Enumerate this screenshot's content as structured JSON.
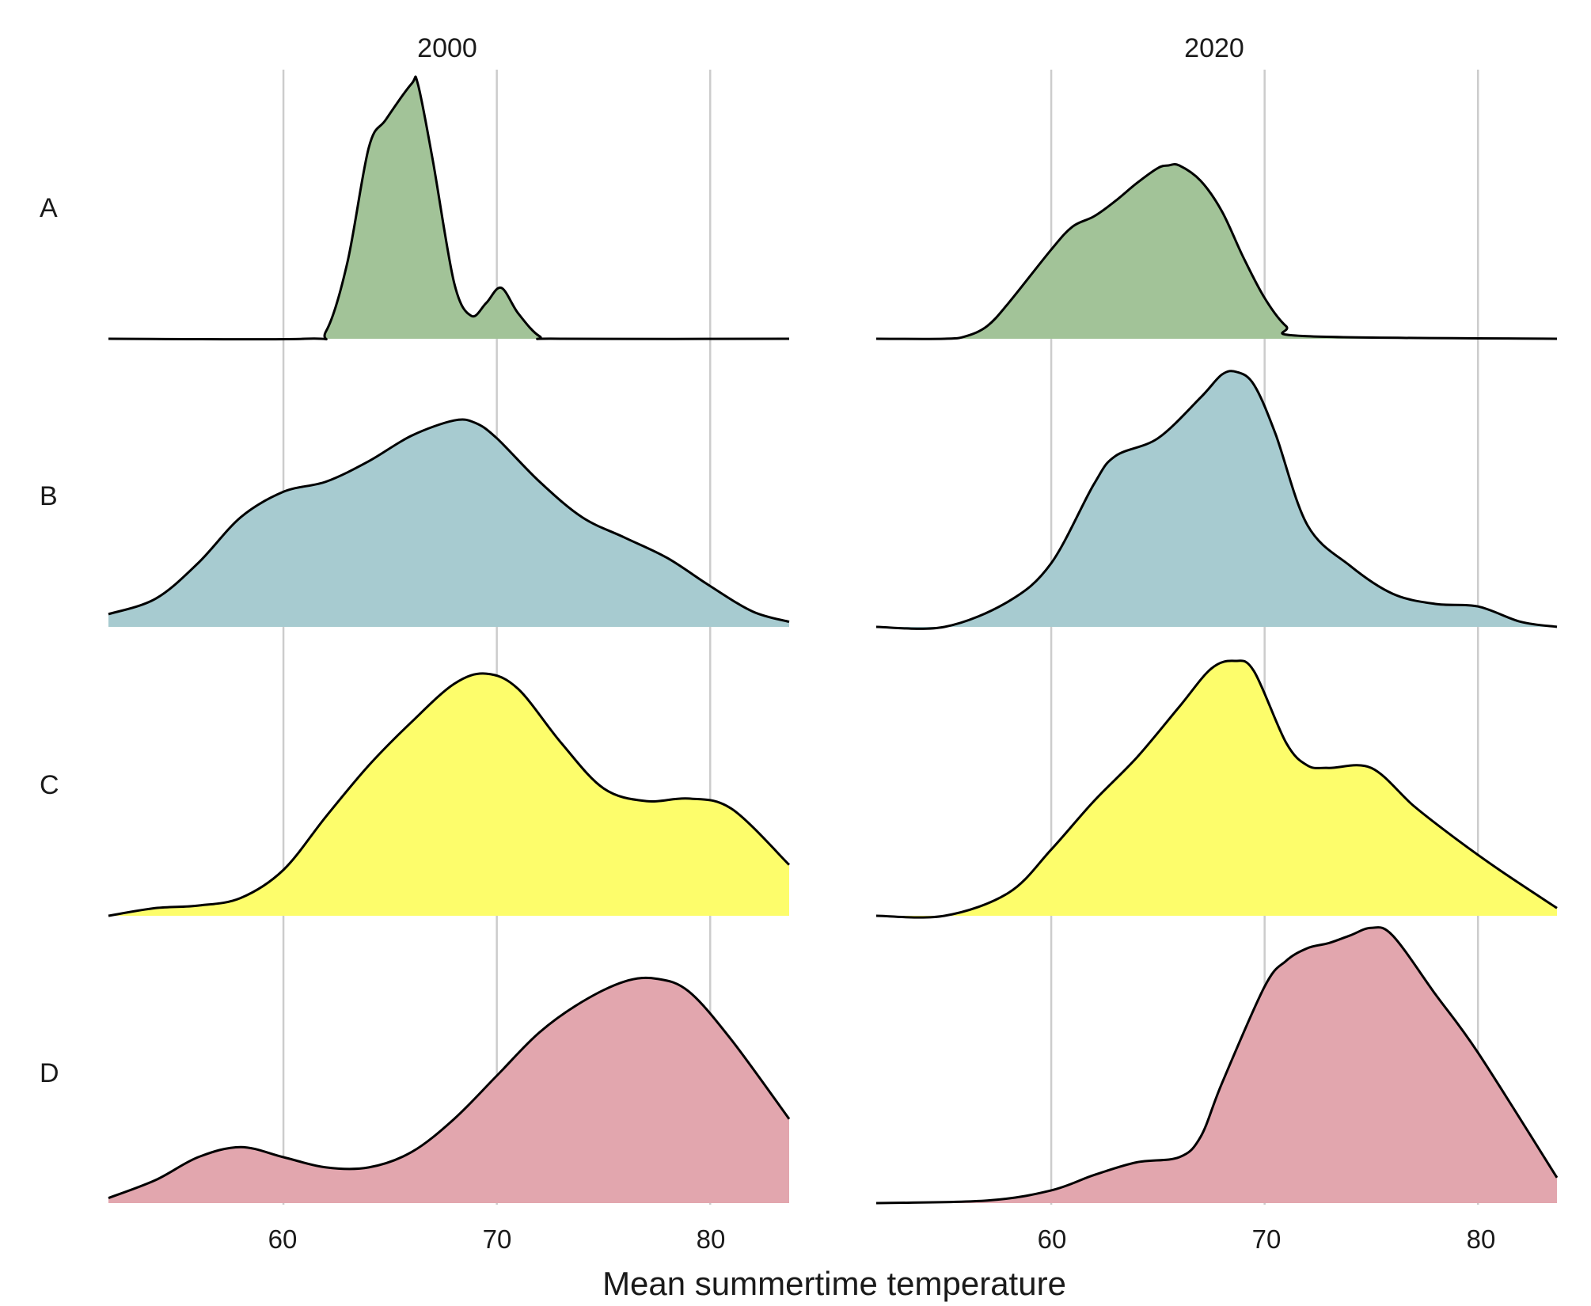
{
  "chart_data": {
    "type": "area",
    "chart_kind": "ridgeline density, faceted by year",
    "xlabel": "Mean summertime temperature",
    "xlim": [
      51.8,
      83.7
    ],
    "xticks": [
      60,
      70,
      80
    ],
    "xtick_labels": [
      "60",
      "70",
      "80"
    ],
    "grid": "vertical major gridlines",
    "legend": "none",
    "facets": [
      "2000",
      "2020"
    ],
    "rows": [
      "A",
      "B",
      "C",
      "D"
    ],
    "colors": {
      "A": "#a2c398",
      "B": "#a7cbd0",
      "C": "#fdfd6b",
      "D": "#e2a6ae",
      "outline": "#000000",
      "grid": "#cccccc"
    },
    "series": [
      {
        "facet": "2000",
        "row": "A",
        "x": [
          51.8,
          61,
          62,
          63,
          64,
          64.8,
          66,
          66.3,
          67,
          68,
          68.8,
          69.5,
          70.2,
          71,
          72,
          73,
          83.7
        ],
        "y": [
          0,
          0,
          0.03,
          0.3,
          0.75,
          0.86,
          1.0,
          1.0,
          0.7,
          0.22,
          0.09,
          0.14,
          0.2,
          0.1,
          0.01,
          0,
          0
        ]
      },
      {
        "facet": "2000",
        "row": "B",
        "x": [
          51.8,
          54,
          56,
          58,
          60,
          62,
          64,
          66,
          68,
          69,
          70,
          72,
          74,
          76,
          78,
          80,
          82,
          83.7
        ],
        "y": [
          0.05,
          0.11,
          0.25,
          0.43,
          0.53,
          0.57,
          0.65,
          0.75,
          0.81,
          0.8,
          0.74,
          0.57,
          0.43,
          0.35,
          0.27,
          0.16,
          0.06,
          0.02
        ]
      },
      {
        "facet": "2000",
        "row": "C",
        "x": [
          51.8,
          54,
          56,
          58,
          60,
          62,
          64,
          66,
          68,
          69.5,
          71,
          73,
          75,
          77,
          79,
          81,
          83.7
        ],
        "y": [
          0,
          0.03,
          0.04,
          0.07,
          0.18,
          0.39,
          0.59,
          0.76,
          0.91,
          0.95,
          0.89,
          0.68,
          0.5,
          0.45,
          0.46,
          0.42,
          0.2
        ]
      },
      {
        "facet": "2000",
        "row": "D",
        "x": [
          51.8,
          54,
          56,
          58,
          60,
          62,
          64,
          66,
          68,
          70,
          72,
          74,
          76,
          77.5,
          79,
          81,
          83.7
        ],
        "y": [
          0.02,
          0.09,
          0.18,
          0.22,
          0.18,
          0.14,
          0.14,
          0.2,
          0.33,
          0.5,
          0.67,
          0.79,
          0.87,
          0.88,
          0.83,
          0.64,
          0.33
        ]
      },
      {
        "facet": "2020",
        "row": "A",
        "x": [
          51.8,
          55,
          56,
          57,
          58,
          60,
          61,
          62,
          63,
          64,
          65,
          65.5,
          66,
          67,
          68,
          69,
          70,
          71,
          72,
          83.7
        ],
        "y": [
          0,
          0,
          0.01,
          0.05,
          0.14,
          0.35,
          0.44,
          0.48,
          0.54,
          0.61,
          0.67,
          0.68,
          0.68,
          0.62,
          0.5,
          0.32,
          0.16,
          0.05,
          0.01,
          0
        ]
      },
      {
        "facet": "2020",
        "row": "B",
        "x": [
          51.8,
          55,
          58,
          60,
          62,
          63,
          65,
          67,
          68,
          68.7,
          69.5,
          70.5,
          72,
          74,
          76,
          78,
          80,
          82,
          83.7
        ],
        "y": [
          0,
          0,
          0.1,
          0.25,
          0.56,
          0.67,
          0.74,
          0.9,
          0.99,
          1.0,
          0.95,
          0.76,
          0.4,
          0.24,
          0.13,
          0.09,
          0.08,
          0.02,
          0
        ]
      },
      {
        "facet": "2020",
        "row": "C",
        "x": [
          51.8,
          55,
          58,
          60,
          62,
          64,
          66,
          67.5,
          68.6,
          69.5,
          71,
          72,
          73,
          75,
          77,
          79,
          81,
          83.7
        ],
        "y": [
          0,
          0,
          0.09,
          0.26,
          0.45,
          0.62,
          0.82,
          0.97,
          1.0,
          0.96,
          0.68,
          0.59,
          0.58,
          0.58,
          0.43,
          0.3,
          0.18,
          0.03
        ]
      },
      {
        "facet": "2020",
        "row": "D",
        "x": [
          51.8,
          57,
          60,
          62,
          64,
          66,
          67,
          68,
          70,
          71,
          72,
          73,
          74,
          75,
          76,
          78,
          80,
          83.7
        ],
        "y": [
          0,
          0.01,
          0.05,
          0.11,
          0.16,
          0.18,
          0.26,
          0.47,
          0.85,
          0.95,
          1.0,
          1.02,
          1.05,
          1.08,
          1.05,
          0.82,
          0.59,
          0.1
        ]
      }
    ]
  }
}
